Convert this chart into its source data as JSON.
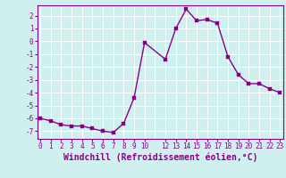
{
  "x": [
    0,
    1,
    2,
    3,
    4,
    5,
    6,
    7,
    8,
    9,
    10,
    12,
    13,
    14,
    15,
    16,
    17,
    18,
    19,
    20,
    21,
    22,
    23
  ],
  "y": [
    -6.0,
    -6.2,
    -6.5,
    -6.6,
    -6.6,
    -6.8,
    -7.0,
    -7.1,
    -6.4,
    -4.4,
    -0.1,
    -1.4,
    1.0,
    2.5,
    1.6,
    1.7,
    1.4,
    -1.2,
    -2.6,
    -3.3,
    -3.3,
    -3.7,
    -4.0
  ],
  "line_color": "#880088",
  "marker_color": "#880088",
  "bg_color": "#d0f0f0",
  "grid_color": "#b0d8d8",
  "xlabel": "Windchill (Refroidissement éolien,°C)",
  "xlabel_color": "#880088",
  "xticks": [
    0,
    1,
    2,
    3,
    4,
    5,
    6,
    7,
    8,
    9,
    10,
    12,
    13,
    14,
    15,
    16,
    17,
    18,
    19,
    20,
    21,
    22,
    23
  ],
  "yticks": [
    -7,
    -6,
    -5,
    -4,
    -3,
    -2,
    -1,
    0,
    1,
    2
  ],
  "ylim": [
    -7.6,
    2.8
  ],
  "xlim": [
    -0.3,
    23.3
  ],
  "tick_color": "#880088",
  "tick_fontsize": 5.5,
  "xlabel_fontsize": 7.0,
  "linewidth": 1.0,
  "markersize": 2.5
}
